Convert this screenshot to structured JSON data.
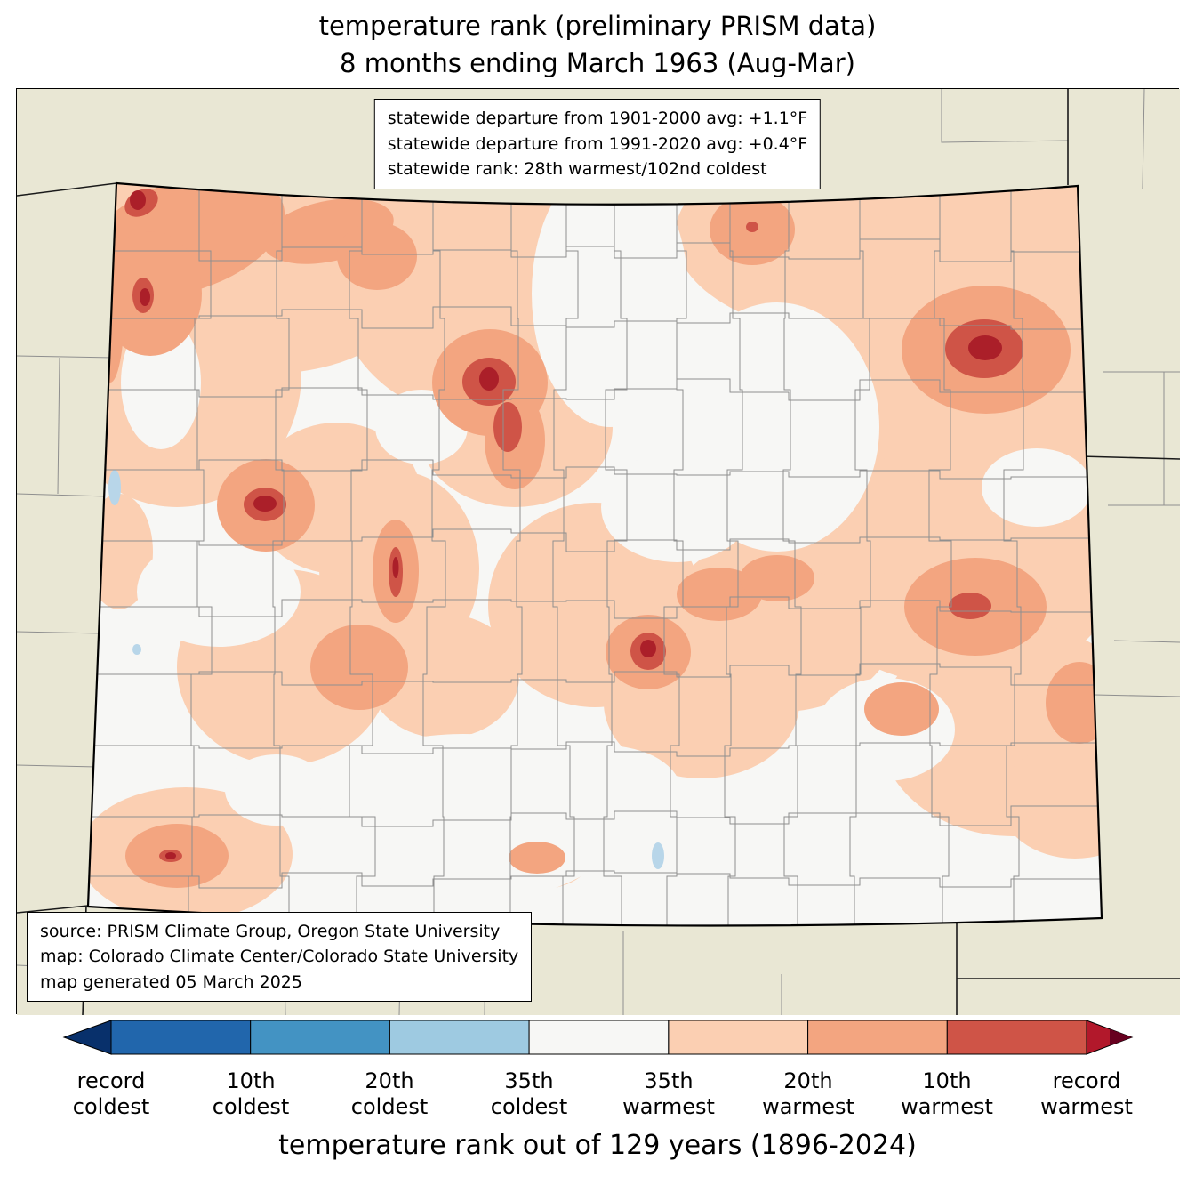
{
  "title": {
    "line1": "temperature rank (preliminary PRISM data)",
    "line2": "8 months ending March 1963 (Aug-Mar)"
  },
  "stats_box": {
    "line1": "statewide departure from 1901-2000 avg: +1.1°F",
    "line2": "statewide departure from 1991-2020 avg: +0.4°F",
    "line3": "statewide rank: 28th warmest/102nd coldest"
  },
  "source_box": {
    "line1": "source: PRISM Climate Group, Oregon State University",
    "line2": "map: Colorado Climate Center/Colorado State University",
    "line3": "map generated 05 March 2025"
  },
  "caption": "temperature rank out of 129 years (1896-2024)",
  "colorbar": {
    "labels": [
      {
        "top": "record",
        "bottom": "coldest"
      },
      {
        "top": "10th",
        "bottom": "coldest"
      },
      {
        "top": "20th",
        "bottom": "coldest"
      },
      {
        "top": "35th",
        "bottom": "coldest"
      },
      {
        "top": "35th",
        "bottom": "warmest"
      },
      {
        "top": "20th",
        "bottom": "warmest"
      },
      {
        "top": "10th",
        "bottom": "warmest"
      },
      {
        "top": "record",
        "bottom": "warmest"
      }
    ],
    "segment_colors": [
      "#2166ac",
      "#4393c3",
      "#9ecae1",
      "#f7f7f5",
      "#fbcfb2",
      "#f3a580",
      "#cf5447"
    ],
    "under_color": "#08306b",
    "over_color": "#b2182b",
    "over_tip_color": "#67001f"
  },
  "map_colors": {
    "background": "#e9e7d4",
    "neutral": "#f7f7f5",
    "warm_35th": "#fbcfb2",
    "warm_20th": "#f3a580",
    "warm_10th": "#cf5447",
    "record_warmest": "#ab1f29",
    "water": "#b8d6e9"
  },
  "chart_data": {
    "type": "choropleth-map",
    "region": "Colorado",
    "variable": "temperature rank (preliminary PRISM data)",
    "period": "8 months ending March 1963 (Aug-Mar)",
    "statewide_departure_from_1901_2000_avg_F": "+1.1",
    "statewide_departure_from_1991_2020_avg_F": "+0.4",
    "statewide_rank": "28th warmest/102nd coldest",
    "rank_out_of_years": 129,
    "rank_period": "1896-2024",
    "legend_categories": [
      "record coldest",
      "10th coldest",
      "20th coldest",
      "35th coldest",
      "35th warmest",
      "20th warmest",
      "10th warmest",
      "record warmest"
    ],
    "map_summary": "Most of Colorado in 35th-20th warmest categories; record/10th-warmest cores in NW corner, north-central mountains, NE plains, west-central, central, SE plains and SW corner; scattered neutral (white) areas in center-south and east-center"
  }
}
